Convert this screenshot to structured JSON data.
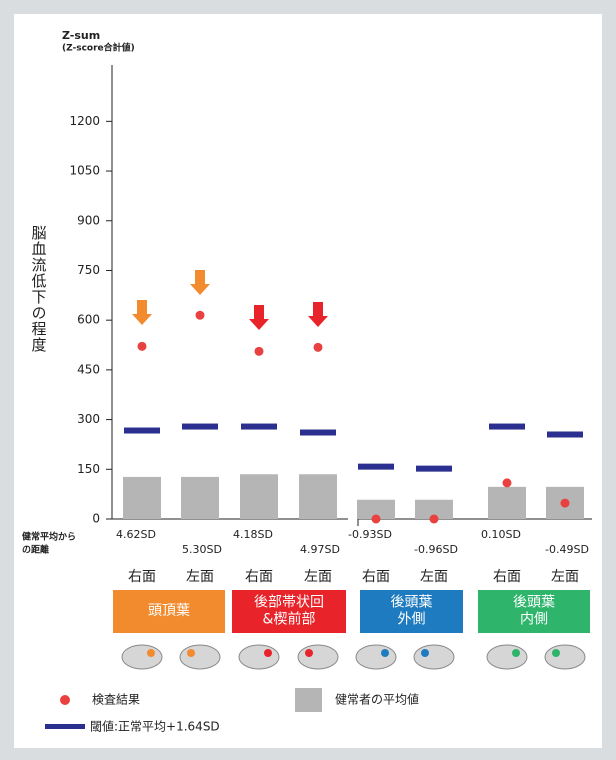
{
  "chart_data": {
    "type": "bar",
    "y_title": [
      "Z-sum",
      "(Z-score合計値)"
    ],
    "y_label": "脳血流低下の程度",
    "ylim": [
      0,
      1370
    ],
    "yticks": [
      0,
      150,
      300,
      450,
      600,
      750,
      900,
      1050,
      1200
    ],
    "categories": [
      "右面",
      "左面",
      "右面",
      "左面",
      "右面",
      "左面",
      "右面",
      "左面"
    ],
    "distance_title": [
      "健常平均から",
      "の距離"
    ],
    "distance_labels": [
      "4.62SD",
      "5.30SD",
      "4.18SD",
      "4.97SD",
      "-0.93SD",
      "-0.96SD",
      "0.10SD",
      "-0.49SD"
    ],
    "groups": [
      {
        "lines": [
          "頭頂葉"
        ],
        "color": "#f28a2e"
      },
      {
        "lines": [
          "後部帯状回",
          "&楔前部"
        ],
        "color": "#e8232a"
      },
      {
        "lines": [
          "後頭葉",
          "外側"
        ],
        "color": "#1f7bbf"
      },
      {
        "lines": [
          "後頭葉",
          "内側"
        ],
        "color": "#2fb46c"
      }
    ],
    "series": [
      {
        "name": "健常者の平均値",
        "kind": "bar",
        "color": "#b5b5b5",
        "values": [
          127,
          127,
          135,
          135,
          58,
          58,
          97,
          97
        ]
      },
      {
        "name": "閾値:正常平均+1.64SD",
        "kind": "threshold",
        "color": "#2b2f8f",
        "values": [
          267,
          279,
          279,
          261,
          158,
          152,
          279,
          255
        ]
      },
      {
        "name": "検査結果",
        "kind": "dot",
        "color": "#e8413f",
        "values": [
          521,
          615,
          506,
          518,
          0,
          0,
          109,
          48
        ]
      }
    ]
  }
}
